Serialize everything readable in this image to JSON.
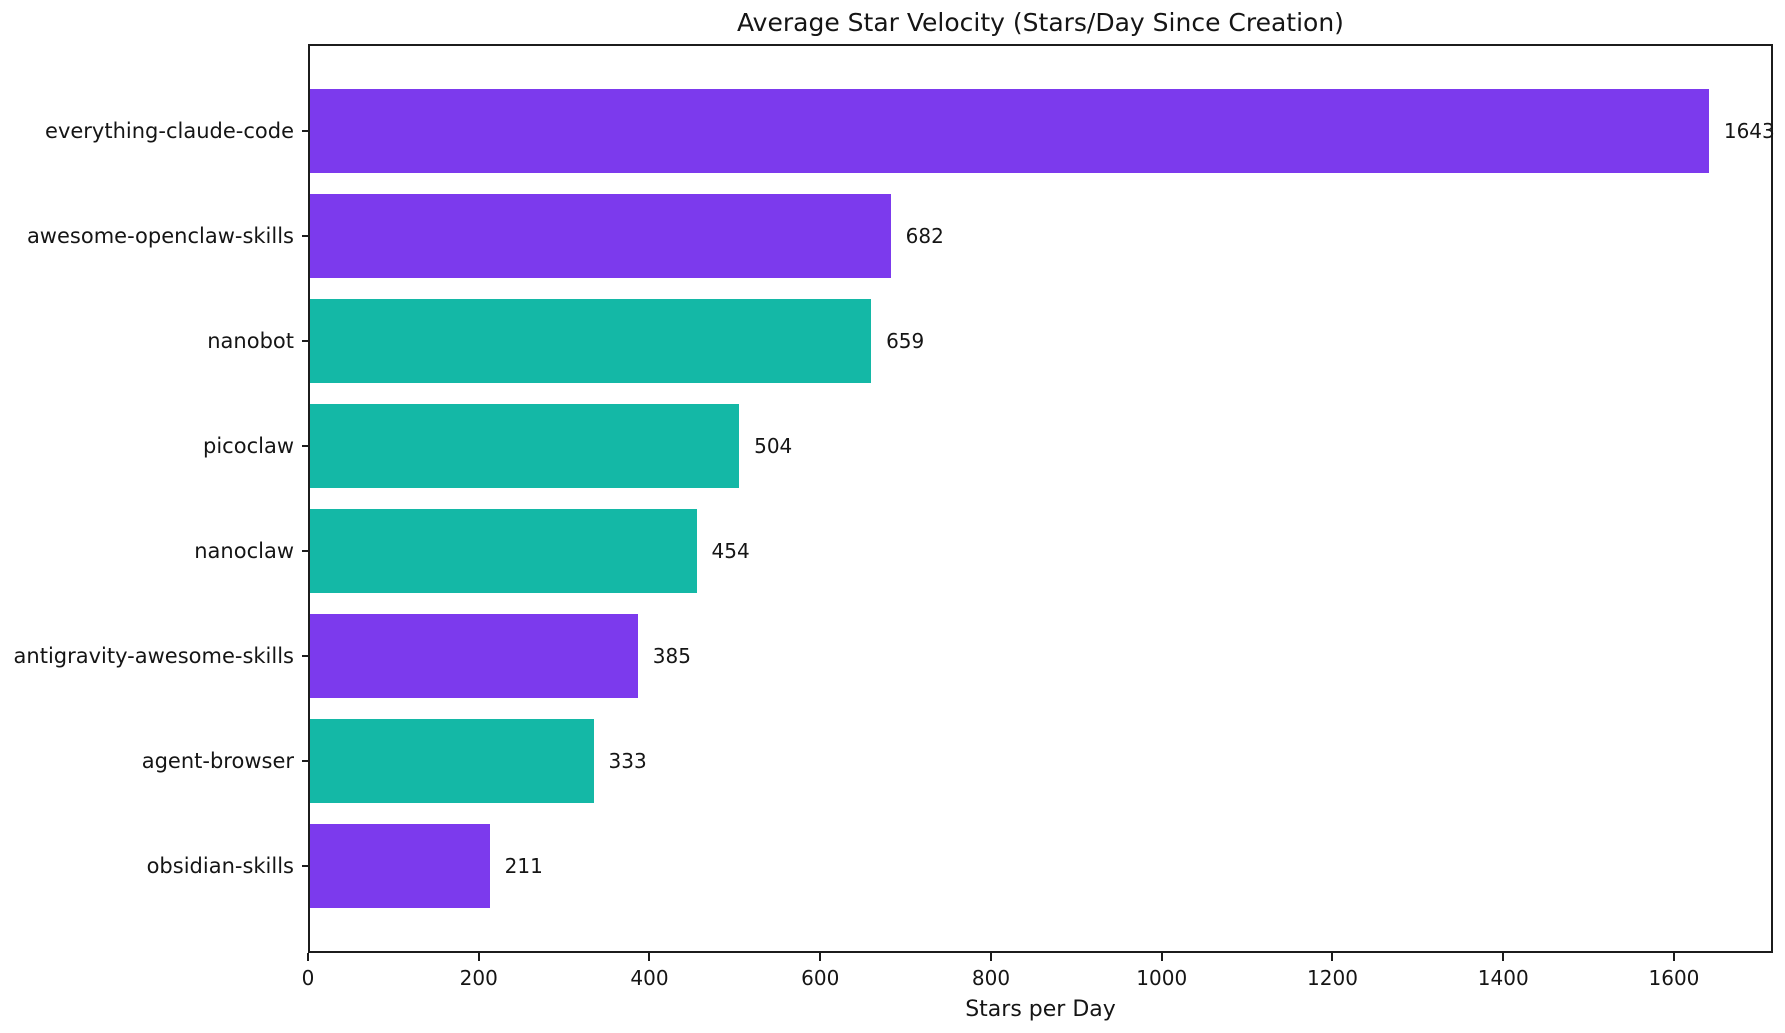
{
  "chart_data": {
    "type": "bar",
    "orientation": "horizontal",
    "title": "Average Star Velocity (Stars/Day Since Creation)",
    "xlabel": "Stars per Day",
    "ylabel": "",
    "categories": [
      "everything-claude-code",
      "awesome-openclaw-skills",
      "nanobot",
      "picoclaw",
      "nanoclaw",
      "antigravity-awesome-skills",
      "agent-browser",
      "obsidian-skills"
    ],
    "values": [
      1643,
      682,
      659,
      504,
      454,
      385,
      333,
      211
    ],
    "value_labels": [
      "1643",
      "682",
      "659",
      "504",
      "454",
      "385",
      "333",
      "211"
    ],
    "bar_colors": [
      "#7c3aed",
      "#7c3aed",
      "#14b8a6",
      "#14b8a6",
      "#14b8a6",
      "#7c3aed",
      "#14b8a6",
      "#7c3aed"
    ],
    "palette": {
      "purple": "#7c3aed",
      "teal": "#14b8a6"
    },
    "axis_color": "#1c1c1c",
    "xlim": [
      0,
      1716
    ],
    "xticks": [
      0,
      200,
      400,
      600,
      800,
      1000,
      1200,
      1400,
      1600
    ],
    "grid": false,
    "legend": false
  }
}
